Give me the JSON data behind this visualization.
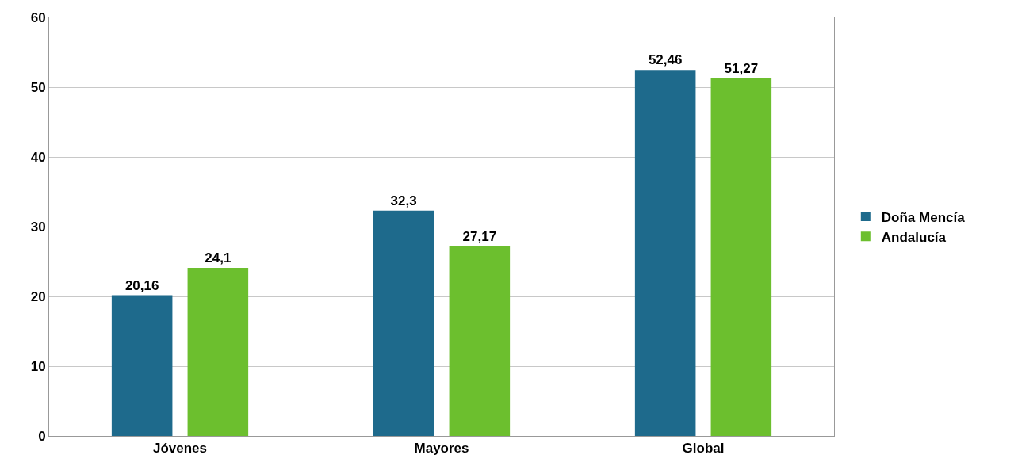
{
  "chart_data": {
    "type": "bar",
    "categories": [
      "Jóvenes",
      "Mayores",
      "Global"
    ],
    "series": [
      {
        "name": "Doña Mencía",
        "color": "#1e6a8c",
        "values": [
          20.16,
          32.3,
          52.46
        ],
        "value_labels": [
          "20,16",
          "32,3",
          "52,46"
        ]
      },
      {
        "name": "Andalucía",
        "color": "#6cbf2e",
        "values": [
          24.1,
          27.17,
          51.27
        ],
        "value_labels": [
          "24,1",
          "27,17",
          "51,27"
        ]
      }
    ],
    "ylim": [
      0,
      60
    ],
    "yticks": [
      0,
      10,
      20,
      30,
      40,
      50,
      60
    ],
    "grid": "y",
    "legend": "right"
  }
}
